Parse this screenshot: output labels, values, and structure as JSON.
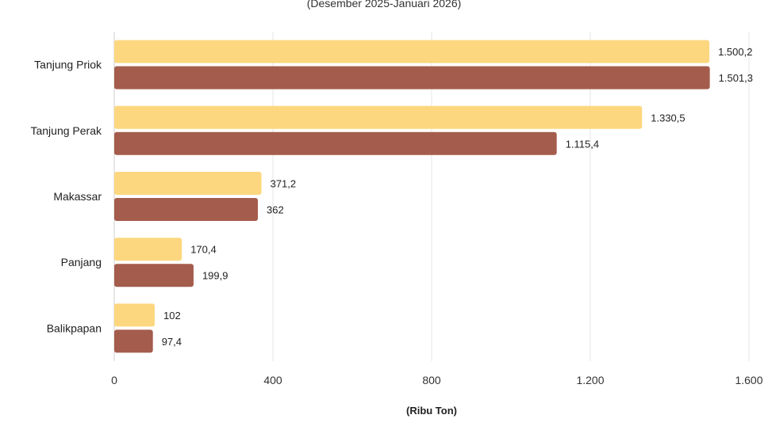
{
  "chart_data": {
    "type": "bar",
    "orientation": "horizontal",
    "subtitle": "(Desember 2025-Januari 2026)",
    "categories": [
      "Tanjung Priok",
      "Tanjung Perak",
      "Makassar",
      "Panjang",
      "Balikpapan"
    ],
    "series": [
      {
        "values": [
          1500.2,
          1330.5,
          371.2,
          170.4,
          102
        ],
        "labels": [
          "1.500,2",
          "1.330,5",
          "371,2",
          "170,4",
          "102"
        ],
        "color": "#FDD77F"
      },
      {
        "values": [
          1501.3,
          1115.4,
          362,
          199.9,
          97.4
        ],
        "labels": [
          "1.501,3",
          "1.115,4",
          "362",
          "199,9",
          "97,4"
        ],
        "color": "#A45C4C"
      }
    ],
    "xlim": [
      0,
      1600
    ],
    "xticks": [
      0,
      400,
      800,
      1200,
      1600
    ],
    "xtick_labels": [
      "0",
      "400",
      "800",
      "1.200",
      "1.600"
    ],
    "xlabel": "(Ribu Ton)",
    "grid": true,
    "legend": "none"
  }
}
